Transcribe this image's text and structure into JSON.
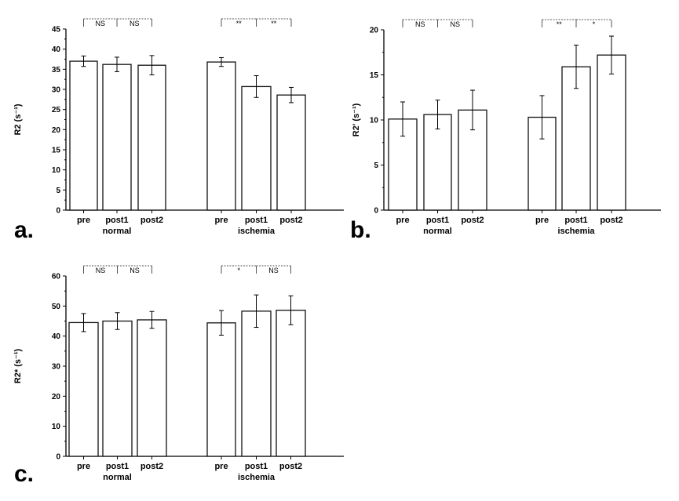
{
  "colors": {
    "axis": "#000000",
    "bar_fill": "#ffffff",
    "bar_stroke": "#111111",
    "bracket": "#555555"
  },
  "chart_data": [
    {
      "id": "a",
      "type": "bar",
      "panel_label": "a.",
      "ylabel": "R2 (s⁻¹)",
      "ylim": [
        0,
        45
      ],
      "yticks": [
        0,
        5,
        10,
        15,
        20,
        25,
        30,
        35,
        40,
        45
      ],
      "categories": [
        "pre",
        "post1",
        "post2",
        "pre",
        "post1",
        "post2"
      ],
      "groups": [
        "normal",
        "ischemia"
      ],
      "values": [
        37.0,
        36.2,
        36.0,
        36.8,
        30.7,
        28.6
      ],
      "errors": [
        1.3,
        1.8,
        2.4,
        1.1,
        2.7,
        1.9
      ],
      "significance": [
        "NS",
        "NS",
        "**",
        "**"
      ]
    },
    {
      "id": "b",
      "type": "bar",
      "panel_label": "b.",
      "ylabel": "R2' (s⁻¹)",
      "ylim": [
        0,
        20
      ],
      "yticks": [
        0,
        5,
        10,
        15,
        20
      ],
      "categories": [
        "pre",
        "post1",
        "post2",
        "pre",
        "post1",
        "post2"
      ],
      "groups": [
        "normal",
        "ischemia"
      ],
      "values": [
        10.1,
        10.6,
        11.1,
        10.3,
        15.9,
        17.2
      ],
      "errors": [
        1.9,
        1.6,
        2.2,
        2.4,
        2.4,
        2.1
      ],
      "significance": [
        "NS",
        "NS",
        "**",
        "*"
      ]
    },
    {
      "id": "c",
      "type": "bar",
      "panel_label": "c.",
      "ylabel": "R2* (s⁻¹)",
      "ylim": [
        0,
        60
      ],
      "yticks": [
        0,
        10,
        20,
        30,
        40,
        50,
        60
      ],
      "categories": [
        "pre",
        "post1",
        "post2",
        "pre",
        "post1",
        "post2"
      ],
      "groups": [
        "normal",
        "ischemia"
      ],
      "values": [
        44.5,
        45.0,
        45.4,
        44.4,
        48.3,
        48.6
      ],
      "errors": [
        3.0,
        2.8,
        2.8,
        4.1,
        5.4,
        4.8
      ],
      "significance": [
        "NS",
        "NS",
        "*",
        "NS"
      ]
    }
  ]
}
